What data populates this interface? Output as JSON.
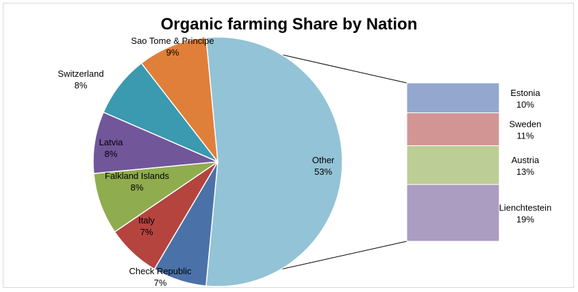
{
  "chart_data": {
    "type": "pie",
    "subtype": "bar-of-pie",
    "title": "Organic farming Share by Nation",
    "slices": [
      {
        "label": "Other",
        "pct_label": "53%",
        "value": 53,
        "color": "#93c3d6"
      },
      {
        "label": "Check Republic",
        "pct_label": "7%",
        "value": 7,
        "color": "#4a72a8"
      },
      {
        "label": "Italy",
        "pct_label": "7%",
        "value": 7,
        "color": "#b5443f"
      },
      {
        "label": "Falkland Islands",
        "pct_label": "8%",
        "value": 8,
        "color": "#8fac4e"
      },
      {
        "label": "Latvia",
        "pct_label": "8%",
        "value": 8,
        "color": "#72569a"
      },
      {
        "label": "Switzerland",
        "pct_label": "8%",
        "value": 8,
        "color": "#3b99b0"
      },
      {
        "label": "Sao Tome & Principe",
        "pct_label": "9%",
        "value": 9,
        "color": "#e07f39"
      }
    ],
    "breakout": [
      {
        "label": "Estonia",
        "pct_label": "10%",
        "value": 10,
        "color": "#94a8cf"
      },
      {
        "label": "Sweden",
        "pct_label": "11%",
        "value": 11,
        "color": "#d39594"
      },
      {
        "label": "Austria",
        "pct_label": "13%",
        "value": 13,
        "color": "#bccd95"
      },
      {
        "label": "Lienchtestein",
        "pct_label": "19%",
        "value": 19,
        "color": "#ab9cc1"
      }
    ],
    "legend": "none"
  }
}
